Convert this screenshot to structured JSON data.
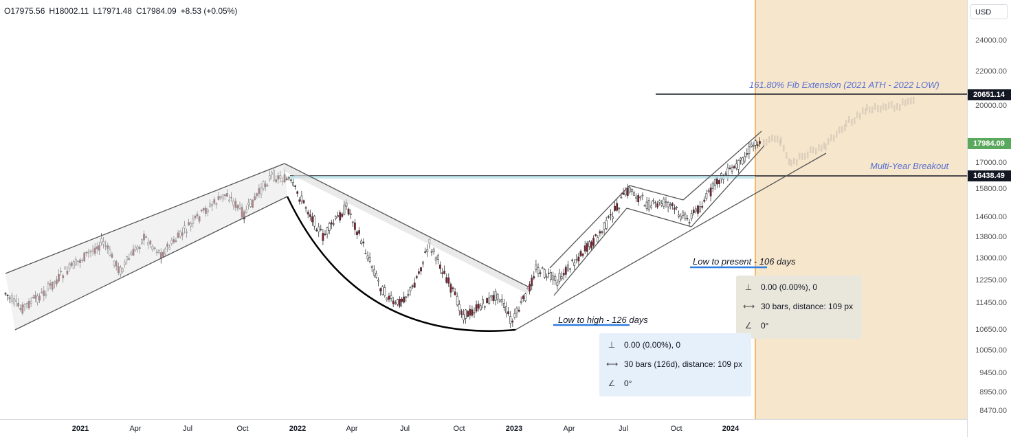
{
  "ohlc": {
    "open": "O17975.56",
    "high": "H18002.11",
    "low": "L17971.48",
    "close": "C17984.09",
    "change": "+8.53 (+0.05%)"
  },
  "price_axis": {
    "currency": "USD",
    "labels": [
      "24000.00",
      "22000.00",
      "20000.00",
      "17000.00",
      "15800.00",
      "14600.00",
      "13800.00",
      "13000.00",
      "12250.00",
      "11450.00",
      "10650.00",
      "10050.00",
      "9450.00",
      "8950.00",
      "8470.00"
    ],
    "tags": {
      "fib": "20651.14",
      "current": "17984.09",
      "breakout": "16438.49"
    }
  },
  "time_axis": {
    "labels": [
      "2021",
      "Apr",
      "Jul",
      "Oct",
      "2022",
      "Apr",
      "Jul",
      "Oct",
      "2023",
      "Apr",
      "Jul",
      "Oct",
      "2024"
    ]
  },
  "annotations": {
    "fib_extension": "161.80% Fib Extension (2021 ATH - 2022 LOW)",
    "multi_year_breakout": "Multi-Year Breakout",
    "low_to_present": "Low to present - 106 days",
    "low_to_high": "Low to high - 126 days"
  },
  "measure_panels": {
    "present": {
      "price_range": "0.00 (0.00%), 0",
      "bars_range": "30 bars, distance: 109 px",
      "angle": "0°"
    },
    "high": {
      "price_range": "0.00 (0.00%), 0",
      "bars_range": "30 bars (126d), distance: 109 px",
      "angle": "0°"
    }
  },
  "colors": {
    "up_candle": "#ffffff",
    "down_candle": "#8b1a2b",
    "candle_wick": "#333333",
    "projection": "#f6e6cc",
    "projection_edge": "#f0a64a",
    "annotation_text": "#5a6fd1",
    "underline": "#2f7de1",
    "panel_bg": "#e6f0fb",
    "panel_bg_alt": "#e9e6dc",
    "current_tag": "#5aa85d",
    "level_tag": "#131722"
  }
}
